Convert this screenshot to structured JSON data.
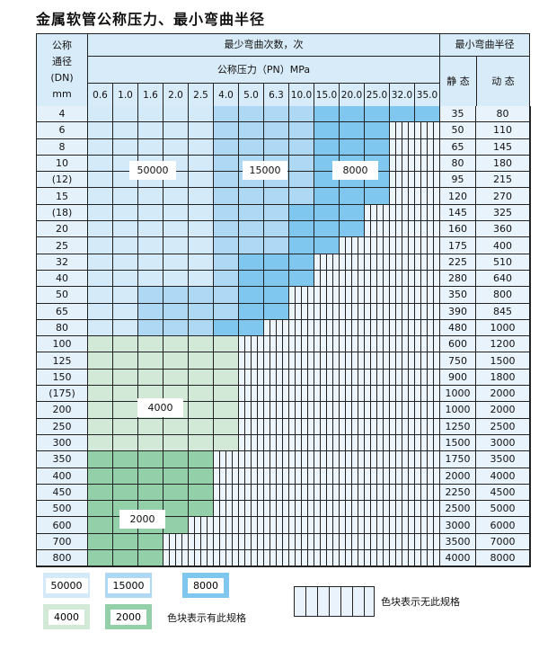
{
  "title": "金属软管公称压力、最小弯曲半径",
  "header": {
    "dn_label": [
      "公称",
      "通径",
      "(DN)",
      "mm"
    ],
    "bend_count": "最少弯曲次数，次",
    "pressure": "公称压力（PN）MPa",
    "radius": "最小弯曲半径",
    "static": "静 态",
    "dynamic": "动 态",
    "pressures": [
      "0.6",
      "1.0",
      "1.6",
      "2.0",
      "2.5",
      "4.0",
      "5.0",
      "6.3",
      "10.0",
      "15.0",
      "20.0",
      "25.0",
      "32.0",
      "35.0"
    ]
  },
  "colors": {
    "A": "#d5eaf9",
    "B": "#aed8f4",
    "C": "#80c7ef",
    "D": "#d2e9d8",
    "E": "#93cfa9"
  },
  "region_values": {
    "A": "50000",
    "B": "15000",
    "C": "8000",
    "D": "4000",
    "E": "2000"
  },
  "rows": [
    {
      "dn": "4",
      "static": "35",
      "dynamic": "80",
      "cells": "AAAAABBBBCCCCC"
    },
    {
      "dn": "6",
      "static": "50",
      "dynamic": "110",
      "cells": "AAAAABBBBCCC--"
    },
    {
      "dn": "8",
      "static": "65",
      "dynamic": "145",
      "cells": "AAAAABBBBCCC--"
    },
    {
      "dn": "10",
      "static": "80",
      "dynamic": "180",
      "cells": "AAAAABBBBCCC--"
    },
    {
      "dn": "(12)",
      "static": "95",
      "dynamic": "215",
      "cells": "AAAAABBBBCCC--"
    },
    {
      "dn": "15",
      "static": "120",
      "dynamic": "270",
      "cells": "AAAAABBBBCCC--"
    },
    {
      "dn": "(18)",
      "static": "145",
      "dynamic": "325",
      "cells": "AAAAABBBCCC---"
    },
    {
      "dn": "20",
      "static": "160",
      "dynamic": "360",
      "cells": "AAAAABBBCCC---"
    },
    {
      "dn": "25",
      "static": "175",
      "dynamic": "400",
      "cells": "AAAAABBBCC----"
    },
    {
      "dn": "32",
      "static": "225",
      "dynamic": "510",
      "cells": "AAAAABCCC-----"
    },
    {
      "dn": "40",
      "static": "280",
      "dynamic": "640",
      "cells": "AAAAABCCC-----"
    },
    {
      "dn": "50",
      "static": "350",
      "dynamic": "800",
      "cells": "AABBBBCC------"
    },
    {
      "dn": "65",
      "static": "390",
      "dynamic": "845",
      "cells": "AABBBBCC------"
    },
    {
      "dn": "80",
      "static": "480",
      "dynamic": "1000",
      "cells": "AABBBCC-------"
    },
    {
      "dn": "100",
      "static": "600",
      "dynamic": "1200",
      "cells": "DDDDDD--------"
    },
    {
      "dn": "125",
      "static": "750",
      "dynamic": "1500",
      "cells": "DDDDDD--------"
    },
    {
      "dn": "150",
      "static": "900",
      "dynamic": "1800",
      "cells": "DDDDDD--------"
    },
    {
      "dn": "(175)",
      "static": "1000",
      "dynamic": "2000",
      "cells": "DDDDDD--------"
    },
    {
      "dn": "200",
      "static": "1000",
      "dynamic": "2000",
      "cells": "DDDDDD--------"
    },
    {
      "dn": "250",
      "static": "1250",
      "dynamic": "2500",
      "cells": "DDDDDD--------"
    },
    {
      "dn": "300",
      "static": "1500",
      "dynamic": "3000",
      "cells": "DDDDDD--------"
    },
    {
      "dn": "350",
      "static": "1750",
      "dynamic": "3500",
      "cells": "EEEEE---------"
    },
    {
      "dn": "400",
      "static": "2000",
      "dynamic": "4000",
      "cells": "EEEEE---------"
    },
    {
      "dn": "450",
      "static": "2250",
      "dynamic": "4500",
      "cells": "EEEEE---------"
    },
    {
      "dn": "500",
      "static": "2500",
      "dynamic": "5000",
      "cells": "EEEEE---------"
    },
    {
      "dn": "600",
      "static": "3000",
      "dynamic": "6000",
      "cells": "EEEE----------"
    },
    {
      "dn": "700",
      "static": "3500",
      "dynamic": "7000",
      "cells": "EEE-----------"
    },
    {
      "dn": "800",
      "static": "4000",
      "dynamic": "8000",
      "cells": "EEE-----------"
    }
  ],
  "legend": {
    "items": [
      "50000",
      "15000",
      "8000",
      "4000",
      "2000"
    ],
    "has_spec": "色块表示有此规格",
    "no_spec": "色块表示无此规格"
  }
}
